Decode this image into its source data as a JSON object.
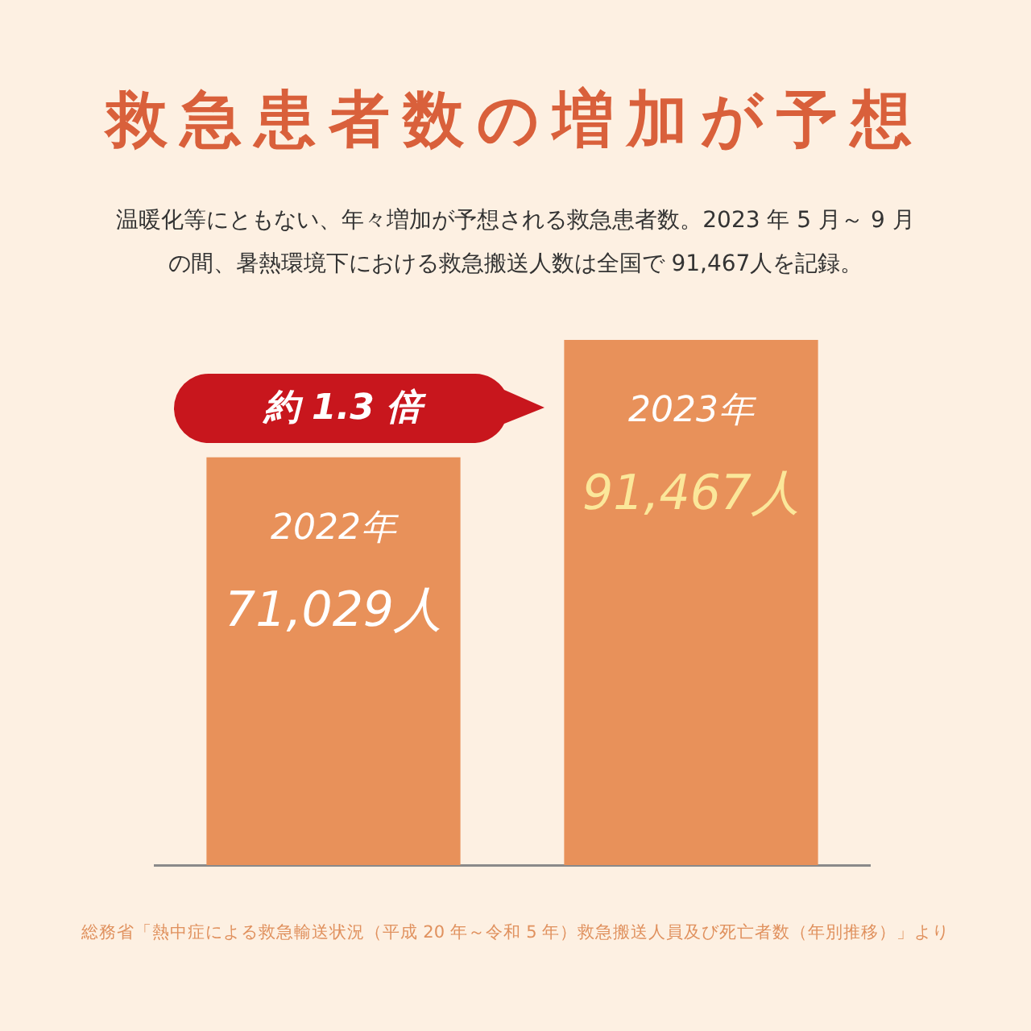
{
  "chart_data": {
    "type": "bar",
    "title": "救急患者数の増加が予想",
    "subtitle": "温暖化等にともない、年々増加が予想される救急患者数。2023 年 5 月～ 9 月の間、暑熱環境下における救急搬送人数は全国で 91,467人を記録。",
    "categories": [
      "2022年",
      "2023年"
    ],
    "values": [
      71029,
      91467
    ],
    "value_labels": [
      "71,029人",
      "91,467人"
    ],
    "color": "#e8915a",
    "annotations": [
      "約 1.3 倍",
      "総務省「熱中症による救急輸送状況（平成 20 年～令和 5 年）救急搬送人員及び死亡者数（年別推移）」より"
    ],
    "tick_labels": "x",
    "grid": false,
    "legend": false
  }
}
